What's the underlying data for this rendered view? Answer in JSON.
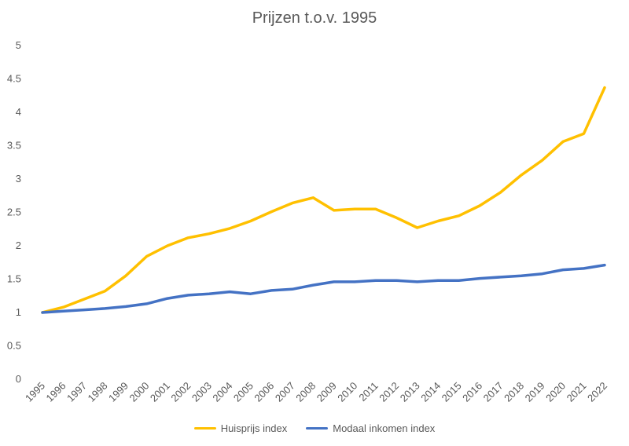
{
  "chart_data": {
    "type": "line",
    "title": "Prijzen t.o.v. 1995",
    "xlabel": "",
    "ylabel": "",
    "ylim": [
      0,
      5
    ],
    "yticks": [
      "0",
      "0.5",
      "1",
      "1.5",
      "2",
      "2.5",
      "3",
      "3.5",
      "4",
      "4.5",
      "5"
    ],
    "grid": false,
    "legend_position": "bottom",
    "categories": [
      "1995",
      "1996",
      "1997",
      "1998",
      "1999",
      "2000",
      "2001",
      "2002",
      "2003",
      "2004",
      "2005",
      "2006",
      "2007",
      "2008",
      "2009",
      "2010",
      "2011",
      "2012",
      "2013",
      "2014",
      "2015",
      "2016",
      "2017",
      "2018",
      "2019",
      "2020",
      "2021",
      "2022"
    ],
    "series": [
      {
        "name": "Huisprijs index",
        "color": "#FFC000",
        "values": [
          1.0,
          1.08,
          1.2,
          1.32,
          1.55,
          1.84,
          2.0,
          2.12,
          2.18,
          2.26,
          2.37,
          2.51,
          2.64,
          2.72,
          2.53,
          2.55,
          2.55,
          2.42,
          2.27,
          2.37,
          2.45,
          2.6,
          2.8,
          3.06,
          3.28,
          3.56,
          3.68,
          4.37
        ]
      },
      {
        "name": "Modaal inkomen index",
        "color": "#4472C4",
        "values": [
          1.0,
          1.02,
          1.04,
          1.06,
          1.09,
          1.13,
          1.21,
          1.26,
          1.28,
          1.31,
          1.28,
          1.33,
          1.35,
          1.41,
          1.46,
          1.46,
          1.48,
          1.48,
          1.46,
          1.48,
          1.48,
          1.51,
          1.53,
          1.55,
          1.58,
          1.64,
          1.66,
          1.71
        ]
      }
    ]
  }
}
